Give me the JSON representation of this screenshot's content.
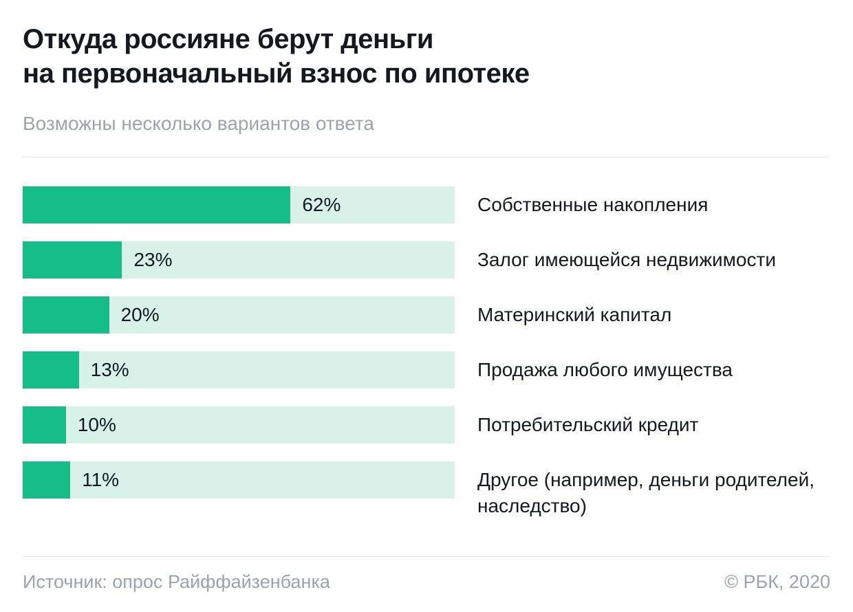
{
  "header": {
    "title_lines": [
      "Откуда россияне берут деньги",
      "на первоначальный взнос по ипотеке"
    ],
    "subtitle": "Возможны несколько вариантов ответа"
  },
  "chart_data": {
    "type": "bar",
    "orientation": "horizontal",
    "title": "Откуда россияне берут деньги на первоначальный взнос по ипотеке",
    "subtitle": "Возможны несколько вариантов ответа",
    "categories": [
      "Собственные накопления",
      "Залог имеющейся недвижимости",
      "Материнский капитал",
      "Продажа любого имущества",
      "Потребительский кредит",
      "Другое (например, деньги родителей, наследство)"
    ],
    "values": [
      62,
      23,
      20,
      13,
      10,
      11
    ],
    "value_labels": [
      "62%",
      "23%",
      "20%",
      "13%",
      "10%",
      "11%"
    ],
    "xlim": [
      0,
      100
    ],
    "xlabel": "",
    "ylabel": "",
    "grid": false,
    "legend": false,
    "colors": {
      "bar": "#16bd86",
      "track": "#d8f2e9",
      "text": "#14191f",
      "muted": "#9ba3ab"
    }
  },
  "footer": {
    "source": "Источник: опрос Райффайзенбанка",
    "copyright": "© РБК, 2020"
  }
}
